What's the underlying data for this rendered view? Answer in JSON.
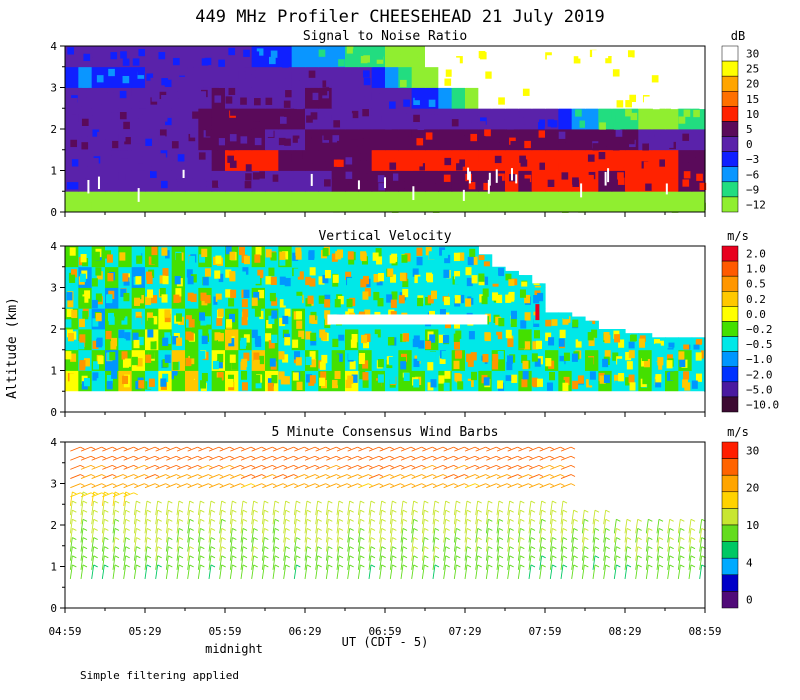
{
  "title": "449 MHz Profiler CHEESEHEAD 21 July 2019",
  "ylabel": "Altitude (km)",
  "xlabel": "UT  (CDT - 5)",
  "midnight_label": "midnight",
  "footer": "Simple filtering applied",
  "x_ticks": [
    "04:59",
    "05:29",
    "05:59",
    "06:29",
    "06:59",
    "07:29",
    "07:59",
    "08:29",
    "08:59"
  ],
  "chart_data": [
    {
      "type": "heatmap",
      "title": "Signal to Noise Ratio",
      "units": "dB",
      "ylim": [
        0,
        4
      ],
      "y_ticks": [
        "0",
        "1",
        "2",
        "3",
        "4"
      ],
      "colorbar": {
        "labels": [
          "30",
          "25",
          "20",
          "15",
          "10",
          "5",
          "0",
          "−3",
          "−6",
          "−9",
          "−12"
        ],
        "colors": [
          "#ffffff",
          "#ffff00",
          "#ffa500",
          "#ff7000",
          "#ff2200",
          "#5a0a5a",
          "#5a22aa",
          "#1020ff",
          "#0a96ff",
          "#22dd80",
          "#90ee30"
        ]
      },
      "rows": [
        {
          "alt": 0.25,
          "values": [
            -12,
            -12,
            -12,
            -12,
            -12,
            -12,
            -12,
            -12,
            -12,
            -12,
            -12,
            -12,
            -12,
            -12,
            -12,
            -12,
            -12,
            -12,
            -12,
            -12,
            -12,
            -12,
            -12,
            -12,
            -12,
            -12,
            -12,
            -12,
            -12,
            -12,
            -12,
            -12,
            -12,
            -12,
            -12,
            -12,
            -12,
            -12,
            -12,
            -12,
            -12,
            -12,
            -12,
            -12,
            -12,
            -12,
            -12,
            -12
          ]
        },
        {
          "alt": 0.75,
          "values": [
            1,
            1,
            1,
            2,
            1,
            1,
            1,
            1,
            2,
            2,
            3,
            4,
            3,
            4,
            4,
            4,
            4,
            3,
            4,
            4,
            5,
            5,
            7,
            7,
            7,
            7,
            8,
            8,
            8,
            8,
            9,
            9,
            9,
            10,
            9,
            10,
            10,
            10,
            10,
            10,
            9,
            9,
            10,
            10,
            10,
            10,
            9,
            9
          ]
        },
        {
          "alt": 1.25,
          "values": [
            2,
            2,
            1,
            2,
            2,
            2,
            1,
            2,
            2,
            3,
            4,
            8,
            11,
            12,
            11,
            10,
            8,
            7,
            8,
            9,
            8,
            7,
            9,
            10,
            10,
            11,
            11,
            11,
            11,
            11,
            12,
            12,
            12,
            12,
            12,
            11,
            13,
            13,
            13,
            12,
            11,
            12,
            11,
            11,
            10,
            10,
            9,
            8
          ]
        },
        {
          "alt": 1.75,
          "values": [
            3,
            3,
            2,
            3,
            3,
            2,
            2,
            3,
            3,
            4,
            5,
            6,
            5,
            5,
            5,
            4,
            4,
            4,
            6,
            7,
            7,
            7,
            7,
            7,
            7,
            7,
            8,
            8,
            9,
            9,
            9,
            8,
            9,
            9,
            9,
            9,
            8,
            7,
            7,
            6,
            5,
            5,
            5,
            4,
            4,
            4,
            4,
            3
          ]
        },
        {
          "alt": 2.25,
          "values": [
            3,
            3,
            3,
            3,
            3,
            3,
            3,
            2,
            3,
            4,
            6,
            9,
            9,
            9,
            7,
            6,
            5,
            5,
            4,
            4,
            4,
            4,
            3,
            3,
            3,
            3,
            3,
            3,
            3,
            3,
            2,
            2,
            2,
            2,
            1,
            1,
            0,
            -3,
            -6,
            -6,
            -9,
            -9,
            -9,
            -12,
            -12,
            -12,
            -9,
            -9
          ]
        },
        {
          "alt": 2.75,
          "values": [
            2,
            2,
            2,
            2,
            2,
            2,
            3,
            3,
            3,
            4,
            4,
            5,
            4,
            4,
            4,
            4,
            4,
            4,
            5,
            5,
            4,
            3,
            3,
            2,
            1,
            1,
            -3,
            -3,
            -6,
            -9,
            -12,
            30,
            30,
            30,
            30,
            30,
            30,
            30,
            30,
            30,
            30,
            30,
            30,
            30,
            30,
            30,
            30,
            30
          ]
        },
        {
          "alt": 3.25,
          "values": [
            -3,
            -6,
            -3,
            -3,
            -3,
            -3,
            0,
            0,
            1,
            2,
            2,
            3,
            4,
            3,
            3,
            3,
            3,
            3,
            3,
            3,
            2,
            2,
            1,
            -3,
            -6,
            -9,
            -12,
            -12,
            30,
            30,
            30,
            30,
            30,
            30,
            30,
            30,
            30,
            30,
            30,
            30,
            30,
            30,
            30,
            30,
            30,
            30,
            30,
            30
          ]
        },
        {
          "alt": 3.75,
          "values": [
            1,
            1,
            1,
            1,
            1,
            1,
            1,
            0,
            0,
            0,
            0,
            0,
            0,
            0,
            -3,
            -3,
            -3,
            -6,
            -6,
            -6,
            -6,
            -9,
            -9,
            -9,
            -12,
            -12,
            -12,
            30,
            30,
            30,
            30,
            30,
            30,
            30,
            30,
            30,
            30,
            30,
            30,
            30,
            30,
            30,
            30,
            30,
            30,
            30,
            30,
            30
          ]
        }
      ]
    },
    {
      "type": "heatmap",
      "title": "Vertical Velocity",
      "units": "m/s",
      "ylim": [
        0,
        4
      ],
      "y_ticks": [
        "0",
        "1",
        "2",
        "3",
        "4"
      ],
      "colorbar": {
        "labels": [
          "2.0",
          "1.0",
          "0.5",
          "0.2",
          "0.0",
          "−0.2",
          "−0.5",
          "−1.0",
          "−2.0",
          "−5.0",
          "−10.0"
        ],
        "colors": [
          "#e8001e",
          "#ff5a00",
          "#ff9600",
          "#ffc800",
          "#ffff00",
          "#44e000",
          "#00e8e8",
          "#0096ff",
          "#0032ff",
          "#4a1aa0",
          "#3c0a32"
        ]
      },
      "rows": [
        {
          "alt": 0.75,
          "values": [
            0,
            -0.2,
            -0.5,
            -0.2,
            0.2,
            -0.2,
            -0.5,
            0,
            -0.2,
            0.2,
            -0.5,
            -0.2,
            0,
            -0.5,
            -0.2,
            0,
            -0.5,
            -0.2,
            -0.5,
            -0.2,
            -0.2,
            0,
            -0.5,
            -0.2,
            -0.5,
            -0.2,
            -0.2,
            -0.5,
            -0.2,
            -0.5,
            -0.5,
            -0.2,
            -0.5,
            -0.5,
            -0.2,
            -0.5,
            -0.5,
            -0.2,
            -0.5,
            -0.5,
            -0.2,
            -0.5,
            -0.5,
            -0.2,
            -0.5,
            -0.2,
            -0.5,
            -0.5
          ]
        },
        {
          "alt": 1.25,
          "values": [
            -0.2,
            -0.5,
            -0.2,
            -1,
            -0.2,
            0,
            -0.2,
            -0.5,
            0.2,
            -0.2,
            -0.5,
            0,
            -0.2,
            -0.5,
            0.2,
            -0.2,
            -0.5,
            -0.5,
            -0.2,
            -0.5,
            -0.2,
            -0.5,
            -0.2,
            -0.5,
            -0.5,
            -0.2,
            -0.5,
            -0.5,
            -0.5,
            -0.2,
            -0.5,
            -0.5,
            -0.2,
            -0.5,
            -0.5,
            -0.5,
            -0.2,
            -0.5,
            -0.5,
            -0.2,
            -0.5,
            -0.5,
            -0.5,
            -0.2,
            -0.5,
            -0.5,
            -0.2,
            -0.5
          ]
        },
        {
          "alt": 1.75,
          "values": [
            -0.5,
            -0.2,
            -0.5,
            -0.2,
            -0.5,
            -0.2,
            0,
            -0.2,
            -0.5,
            -0.2,
            -0.5,
            -0.2,
            0.2,
            -0.2,
            -0.5,
            -0.2,
            -0.5,
            -0.2,
            -0.5,
            -0.5,
            -0.5,
            -0.2,
            -0.5,
            -0.5,
            -0.5,
            -0.5,
            -0.5,
            -0.2,
            -0.5,
            -0.5,
            -0.5,
            -0.5,
            -0.5,
            -0.5,
            -0.2,
            -0.5,
            -0.5,
            -0.5,
            -0.5,
            -0.5,
            -0.5,
            -0.5,
            -0.5,
            -0.5,
            -0.5,
            -0.5,
            -0.5,
            -0.5
          ]
        },
        {
          "alt": 2.25,
          "values": [
            -0.2,
            -0.5,
            -1,
            -0.2,
            -0.2,
            -0.5,
            -0.2,
            0,
            -0.5,
            -0.2,
            -0.2,
            -0.5,
            -0.2,
            -0.5,
            -0.5,
            -0.2,
            -0.5,
            -0.2,
            -0.5,
            -0.5,
            -0.5,
            -0.5,
            -0.5,
            -0.5,
            -0.5,
            -0.5,
            -0.5,
            -0.5,
            -0.5,
            -0.5,
            -0.5,
            -0.5,
            -0.5,
            -0.5,
            -0.5,
            -0.5,
            -0.5,
            -0.5,
            -0.5,
            -0.5,
            -0.5,
            -0.5,
            -0.5,
            -0.5,
            -0.5,
            -0.5,
            -0.5,
            -0.5
          ]
        },
        {
          "alt": 2.75,
          "values": [
            -0.5,
            -0.2,
            -0.5,
            -1,
            -0.5,
            -0.2,
            -0.5,
            -0.5,
            -0.2,
            -0.5,
            -0.2,
            -0.5,
            -0.5,
            -0.5,
            -0.2,
            -0.5,
            -0.5,
            -0.5,
            -0.5,
            -0.5,
            -0.5,
            -0.5,
            -0.5,
            -0.5,
            -0.5,
            -0.5,
            -0.5,
            -0.5,
            -0.5,
            -0.5,
            -0.5,
            -0.5,
            -0.5,
            -0.5,
            -0.5,
            -0.5,
            -0.5,
            -0.5,
            -0.5,
            -0.5,
            -0.5,
            -0.5,
            -0.5,
            -0.5,
            -0.5,
            -0.5,
            -0.5,
            -0.5
          ]
        },
        {
          "alt": 3.25,
          "values": [
            -0.5,
            -1,
            -0.5,
            -0.2,
            -0.5,
            -1,
            -0.5,
            -0.5,
            -0.2,
            -0.5,
            -0.5,
            -0.5,
            -0.5,
            -0.5,
            -0.5,
            -0.5,
            -0.5,
            -0.5,
            -0.5,
            -0.5,
            -0.5,
            -0.5,
            -0.5,
            -0.5,
            -0.5,
            -0.5,
            -0.5,
            -0.5,
            -0.5,
            -0.5,
            -0.5,
            -0.5,
            -0.5,
            -0.5,
            -0.5,
            -0.5,
            -0.5,
            -0.5,
            -0.5,
            -0.5,
            -0.5,
            -0.5,
            -0.5,
            -0.5,
            -0.5,
            -0.5,
            -0.5,
            -0.5
          ]
        },
        {
          "alt": 3.75,
          "values": [
            -0.2,
            -0.5,
            -0.2,
            -0.5,
            -0.2,
            -0.5,
            -0.2,
            -0.5,
            -0.2,
            -0.5,
            -0.2,
            -0.5,
            -0.2,
            -0.5,
            -0.2,
            -0.5,
            -0.2,
            -0.5,
            -0.5,
            -0.5,
            -0.5,
            -0.5,
            -0.5,
            -0.5,
            -0.5,
            -0.5,
            -0.5,
            -0.5,
            -0.5,
            -0.5,
            -0.5,
            -0.5,
            -0.5,
            -0.5,
            -0.5,
            -0.5,
            -0.5,
            -0.5,
            -0.5,
            -0.5,
            -0.5,
            -0.5,
            -0.5,
            -0.5,
            -0.5,
            -0.5,
            -0.5,
            -0.5
          ]
        }
      ],
      "coverage_top_km": [
        4,
        4,
        4,
        4,
        4,
        4,
        4,
        4,
        4,
        4,
        4,
        4,
        4,
        4,
        4,
        4,
        4,
        4,
        4,
        4,
        4,
        4,
        4,
        4,
        4,
        4,
        4,
        4,
        4,
        4,
        4,
        3.8,
        3.5,
        3.4,
        3.3,
        3.1,
        2.4,
        2.4,
        2.3,
        2.2,
        2.0,
        2.0,
        1.9,
        1.9,
        1.8,
        1.8,
        1.8,
        1.8
      ]
    },
    {
      "type": "wind_barbs",
      "title": "5 Minute Consensus Wind Barbs",
      "units": "m/s",
      "ylim": [
        0,
        4
      ],
      "y_ticks": [
        "0",
        "1",
        "2",
        "3",
        "4"
      ],
      "colorbar": {
        "labels": [
          "30",
          "20",
          "10",
          "4",
          "0"
        ],
        "colors": [
          "#ff1e00",
          "#ff6400",
          "#ffa500",
          "#ffd200",
          "#c8e632",
          "#64dc1e",
          "#00c864",
          "#00aaff",
          "#0000c8",
          "#500a78"
        ]
      },
      "speed_profile": [
        {
          "alt": 0.8,
          "speed": 8
        },
        {
          "alt": 1.5,
          "speed": 10
        },
        {
          "alt": 2.2,
          "speed": 12
        },
        {
          "alt": 2.8,
          "speed": 18
        },
        {
          "alt": 3.2,
          "speed": 22
        },
        {
          "alt": 3.6,
          "speed": 24
        },
        {
          "alt": 4.0,
          "speed": 25
        }
      ]
    }
  ]
}
